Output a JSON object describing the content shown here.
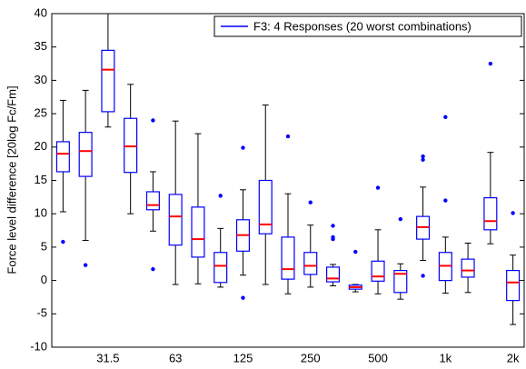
{
  "chart_data": {
    "type": "box",
    "ylabel": "Force level difference [20log Fc/Fm]",
    "categories": [
      null,
      null,
      "31.5",
      null,
      null,
      "63",
      null,
      null,
      "125",
      null,
      null,
      "250",
      null,
      null,
      "500",
      null,
      null,
      "1k",
      null,
      null,
      "2k"
    ],
    "ylim": [
      -10,
      40
    ],
    "yticks": [
      -10,
      -5,
      0,
      5,
      10,
      15,
      20,
      25,
      30,
      35,
      40
    ],
    "legend": "top-right",
    "median_color": "#ff0000",
    "whisker_color": "#000000",
    "series": [
      {
        "name": "F3: 4 Responses (20 worst combinations)",
        "color": "#0000ff",
        "min": [
          10.3,
          6,
          23,
          10,
          7.4,
          -0.6,
          -0.5,
          -1,
          0.8,
          -0.6,
          -2,
          -1,
          -0.8,
          -1.7,
          -2,
          -2.8,
          3,
          -1.9,
          -1.8,
          5.5,
          -6.6
        ],
        "q1": [
          16.3,
          15.6,
          25.3,
          16.2,
          10.6,
          5.3,
          3.5,
          -0.3,
          4.4,
          7,
          0.2,
          0.9,
          -0.2,
          -1.3,
          -0.1,
          -1.8,
          6.2,
          0,
          0.5,
          7.6,
          -3
        ],
        "median": [
          19,
          19.4,
          31.6,
          20.1,
          11.3,
          9.6,
          6.2,
          2.2,
          6.8,
          8.4,
          1.7,
          2.2,
          0.3,
          -1,
          0.6,
          1,
          8,
          2.2,
          1.5,
          8.9,
          -0.3
        ],
        "q3": [
          20.8,
          22.2,
          34.5,
          24.3,
          13.3,
          12.9,
          11,
          4.2,
          9.1,
          15,
          6.5,
          4.2,
          2,
          -0.7,
          2.9,
          1.5,
          9.6,
          4.2,
          3.2,
          12.4,
          1.5
        ],
        "max": [
          27,
          28.5,
          40,
          29.4,
          16.3,
          23.9,
          22,
          7.8,
          13.6,
          26.3,
          13,
          8.3,
          2.4,
          -0.6,
          7.6,
          2.5,
          14,
          6.5,
          5.6,
          19.2,
          3.8
        ],
        "outliers": [
          [
            5.8
          ],
          [
            2.3
          ],
          [],
          [],
          [
            24,
            1.7
          ],
          [],
          [],
          [
            12.7
          ],
          [
            19.9,
            -2.6
          ],
          [],
          [
            21.6
          ],
          [
            11.7
          ],
          [
            8.2,
            6.5,
            6.2
          ],
          [
            4.3
          ],
          [
            13.9
          ],
          [
            9.2
          ],
          [
            18.6,
            18.1,
            0.7
          ],
          [
            24.5,
            12
          ],
          [],
          [
            32.5
          ],
          [
            10.1
          ]
        ]
      }
    ]
  }
}
